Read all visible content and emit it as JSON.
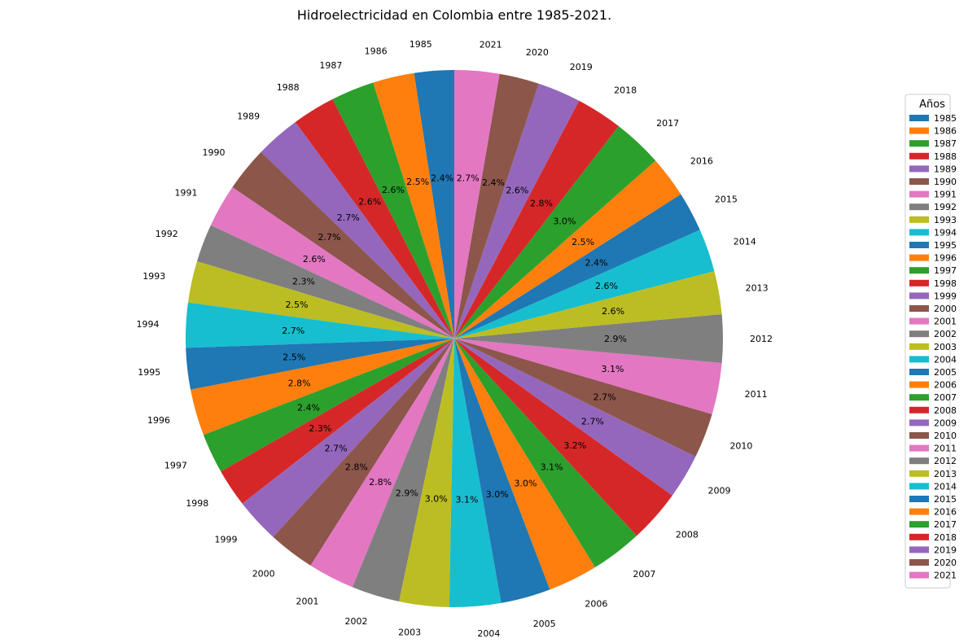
{
  "chart_data": {
    "type": "pie",
    "title": "Hidroelectricidad en Colombia entre 1985-2021.",
    "legend": {
      "title": "Años",
      "placement": "right"
    },
    "start_angle_deg": 90,
    "counterclockwise": true,
    "categories": [
      "1985",
      "1986",
      "1987",
      "1988",
      "1989",
      "1990",
      "1991",
      "1992",
      "1993",
      "1994",
      "1995",
      "1996",
      "1997",
      "1998",
      "1999",
      "2000",
      "2001",
      "2002",
      "2003",
      "2004",
      "2005",
      "2006",
      "2007",
      "2008",
      "2009",
      "2010",
      "2011",
      "2012",
      "2013",
      "2014",
      "2015",
      "2016",
      "2017",
      "2018",
      "2019",
      "2020",
      "2021"
    ],
    "values": [
      2.4,
      2.5,
      2.6,
      2.6,
      2.7,
      2.7,
      2.6,
      2.3,
      2.5,
      2.7,
      2.5,
      2.8,
      2.4,
      2.3,
      2.7,
      2.8,
      2.8,
      2.9,
      3.0,
      3.1,
      3.0,
      3.0,
      3.1,
      3.2,
      2.7,
      2.7,
      3.1,
      2.9,
      2.6,
      2.6,
      2.4,
      2.5,
      3.0,
      2.8,
      2.6,
      2.4,
      2.7
    ],
    "labels": [
      "2.4%",
      "2.5%",
      "2.6%",
      "2.6%",
      "2.7%",
      "2.7%",
      "2.6%",
      "2.3%",
      "2.5%",
      "2.7%",
      "2.5%",
      "2.8%",
      "2.4%",
      "2.3%",
      "2.7%",
      "2.8%",
      "2.8%",
      "2.9%",
      "3.0%",
      "3.1%",
      "3.0%",
      "3.0%",
      "3.1%",
      "3.2%",
      "2.7%",
      "2.7%",
      "3.1%",
      "2.9%",
      "2.6%",
      "2.6%",
      "2.4%",
      "2.5%",
      "3.0%",
      "2.8%",
      "2.6%",
      "2.4%",
      "2.7%"
    ],
    "colors": [
      "#1f77b4",
      "#ff7f0e",
      "#2ca02c",
      "#d62728",
      "#9467bd",
      "#8c564b",
      "#e377c2",
      "#7f7f7f",
      "#bcbd22",
      "#17becf"
    ]
  }
}
